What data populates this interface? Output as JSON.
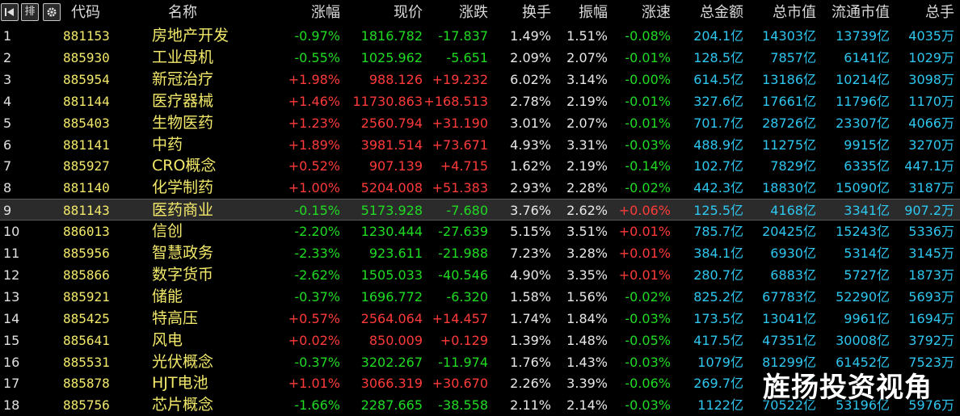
{
  "toolbar": {
    "first_icon": "skip-to-first-icon",
    "sort_label": "排",
    "settings_icon": "gear-icon"
  },
  "header": {
    "code": "代码",
    "name": "名称",
    "change_pct": "涨幅",
    "price": "现价",
    "change": "涨跌",
    "turnover": "换手",
    "amplitude": "振幅",
    "speed": "涨速",
    "amount": "总金额",
    "market_cap": "总市值",
    "float_cap": "流通市值",
    "total_hand": "总手"
  },
  "colors": {
    "up": "#ff3a3a",
    "down": "#1fdc22",
    "code": "#f2e86a",
    "value": "#2ec7f0"
  },
  "rows": [
    {
      "idx": "1",
      "code": "881153",
      "name": "房地产开发",
      "chg": "-0.97%",
      "price": "1816.782",
      "diff": "-17.837",
      "turn": "1.49%",
      "amp": "1.51%",
      "spd": "-0.08%",
      "amt": "204.1亿",
      "mcap": "14303亿",
      "fcap": "13739亿",
      "tot": "4035万"
    },
    {
      "idx": "2",
      "code": "885930",
      "name": "工业母机",
      "chg": "-0.55%",
      "price": "1025.962",
      "diff": "-5.651",
      "turn": "2.09%",
      "amp": "2.07%",
      "spd": "-0.01%",
      "amt": "128.5亿",
      "mcap": "7857亿",
      "fcap": "6141亿",
      "tot": "1029万"
    },
    {
      "idx": "3",
      "code": "885954",
      "name": "新冠治疗",
      "chg": "+1.98%",
      "price": "988.126",
      "diff": "+19.232",
      "turn": "6.02%",
      "amp": "3.14%",
      "spd": "-0.00%",
      "amt": "614.5亿",
      "mcap": "13186亿",
      "fcap": "10214亿",
      "tot": "3098万"
    },
    {
      "idx": "4",
      "code": "881144",
      "name": "医疗器械",
      "chg": "+1.46%",
      "price": "11730.863",
      "diff": "+168.513",
      "turn": "2.78%",
      "amp": "2.19%",
      "spd": "-0.01%",
      "amt": "327.6亿",
      "mcap": "17661亿",
      "fcap": "11796亿",
      "tot": "1170万"
    },
    {
      "idx": "5",
      "code": "885403",
      "name": "生物医药",
      "chg": "+1.23%",
      "price": "2560.794",
      "diff": "+31.190",
      "turn": "3.01%",
      "amp": "2.07%",
      "spd": "-0.01%",
      "amt": "701.7亿",
      "mcap": "28726亿",
      "fcap": "23307亿",
      "tot": "4066万"
    },
    {
      "idx": "6",
      "code": "881141",
      "name": "中药",
      "chg": "+1.89%",
      "price": "3981.514",
      "diff": "+73.671",
      "turn": "4.93%",
      "amp": "3.31%",
      "spd": "-0.03%",
      "amt": "488.9亿",
      "mcap": "11275亿",
      "fcap": "9915亿",
      "tot": "3270万"
    },
    {
      "idx": "7",
      "code": "885927",
      "name": "CRO概念",
      "chg": "+0.52%",
      "price": "907.139",
      "diff": "+4.715",
      "turn": "1.62%",
      "amp": "2.19%",
      "spd": "-0.14%",
      "amt": "102.7亿",
      "mcap": "7829亿",
      "fcap": "6335亿",
      "tot": "447.1万"
    },
    {
      "idx": "8",
      "code": "881140",
      "name": "化学制药",
      "chg": "+1.00%",
      "price": "5204.008",
      "diff": "+51.383",
      "turn": "2.93%",
      "amp": "2.28%",
      "spd": "-0.02%",
      "amt": "442.3亿",
      "mcap": "18830亿",
      "fcap": "15090亿",
      "tot": "3187万"
    },
    {
      "idx": "9",
      "code": "881143",
      "name": "医药商业",
      "chg": "-0.15%",
      "price": "5173.928",
      "diff": "-7.680",
      "turn": "3.76%",
      "amp": "2.62%",
      "spd": "+0.06%",
      "amt": "125.5亿",
      "mcap": "4168亿",
      "fcap": "3341亿",
      "tot": "907.2万"
    },
    {
      "idx": "10",
      "code": "886013",
      "name": "信创",
      "chg": "-2.20%",
      "price": "1230.444",
      "diff": "-27.639",
      "turn": "5.15%",
      "amp": "3.51%",
      "spd": "+0.01%",
      "amt": "785.7亿",
      "mcap": "20425亿",
      "fcap": "15243亿",
      "tot": "5336万"
    },
    {
      "idx": "11",
      "code": "885956",
      "name": "智慧政务",
      "chg": "-2.33%",
      "price": "923.611",
      "diff": "-21.988",
      "turn": "7.23%",
      "amp": "3.28%",
      "spd": "+0.01%",
      "amt": "384.1亿",
      "mcap": "6930亿",
      "fcap": "5314亿",
      "tot": "3145万"
    },
    {
      "idx": "12",
      "code": "885866",
      "name": "数字货币",
      "chg": "-2.62%",
      "price": "1505.033",
      "diff": "-40.546",
      "turn": "4.90%",
      "amp": "3.35%",
      "spd": "+0.01%",
      "amt": "280.7亿",
      "mcap": "6883亿",
      "fcap": "5727亿",
      "tot": "1873万"
    },
    {
      "idx": "13",
      "code": "885921",
      "name": "储能",
      "chg": "-0.37%",
      "price": "1696.772",
      "diff": "-6.320",
      "turn": "1.58%",
      "amp": "1.56%",
      "spd": "-0.02%",
      "amt": "825.2亿",
      "mcap": "67783亿",
      "fcap": "52290亿",
      "tot": "5693万"
    },
    {
      "idx": "14",
      "code": "885425",
      "name": "特高压",
      "chg": "+0.57%",
      "price": "2564.064",
      "diff": "+14.457",
      "turn": "1.74%",
      "amp": "1.84%",
      "spd": "-0.03%",
      "amt": "173.5亿",
      "mcap": "13041亿",
      "fcap": "9961亿",
      "tot": "1694万"
    },
    {
      "idx": "15",
      "code": "885641",
      "name": "风电",
      "chg": "+0.02%",
      "price": "850.009",
      "diff": "+0.129",
      "turn": "1.39%",
      "amp": "1.48%",
      "spd": "-0.05%",
      "amt": "417.5亿",
      "mcap": "47351亿",
      "fcap": "30008亿",
      "tot": "3792万"
    },
    {
      "idx": "16",
      "code": "885531",
      "name": "光伏概念",
      "chg": "-0.37%",
      "price": "3202.267",
      "diff": "-11.974",
      "turn": "1.76%",
      "amp": "1.43%",
      "spd": "-0.03%",
      "amt": "1079亿",
      "mcap": "81299亿",
      "fcap": "61452亿",
      "tot": "7523万"
    },
    {
      "idx": "17",
      "code": "885878",
      "name": "HJT电池",
      "chg": "+1.01%",
      "price": "3066.319",
      "diff": "+30.670",
      "turn": "2.26%",
      "amp": "3.39%",
      "spd": "-0.06%",
      "amt": "269.7亿",
      "mcap": "1",
      "fcap": "",
      "tot": ""
    },
    {
      "idx": "18",
      "code": "885756",
      "name": "芯片概念",
      "chg": "-1.66%",
      "price": "2287.665",
      "diff": "-38.558",
      "turn": "2.11%",
      "amp": "2.14%",
      "spd": "-0.03%",
      "amt": "1122亿",
      "mcap": "70522亿",
      "fcap": "53196亿",
      "tot": "5976万"
    }
  ],
  "selected_row": "9",
  "watermark": "旌扬投资视角"
}
